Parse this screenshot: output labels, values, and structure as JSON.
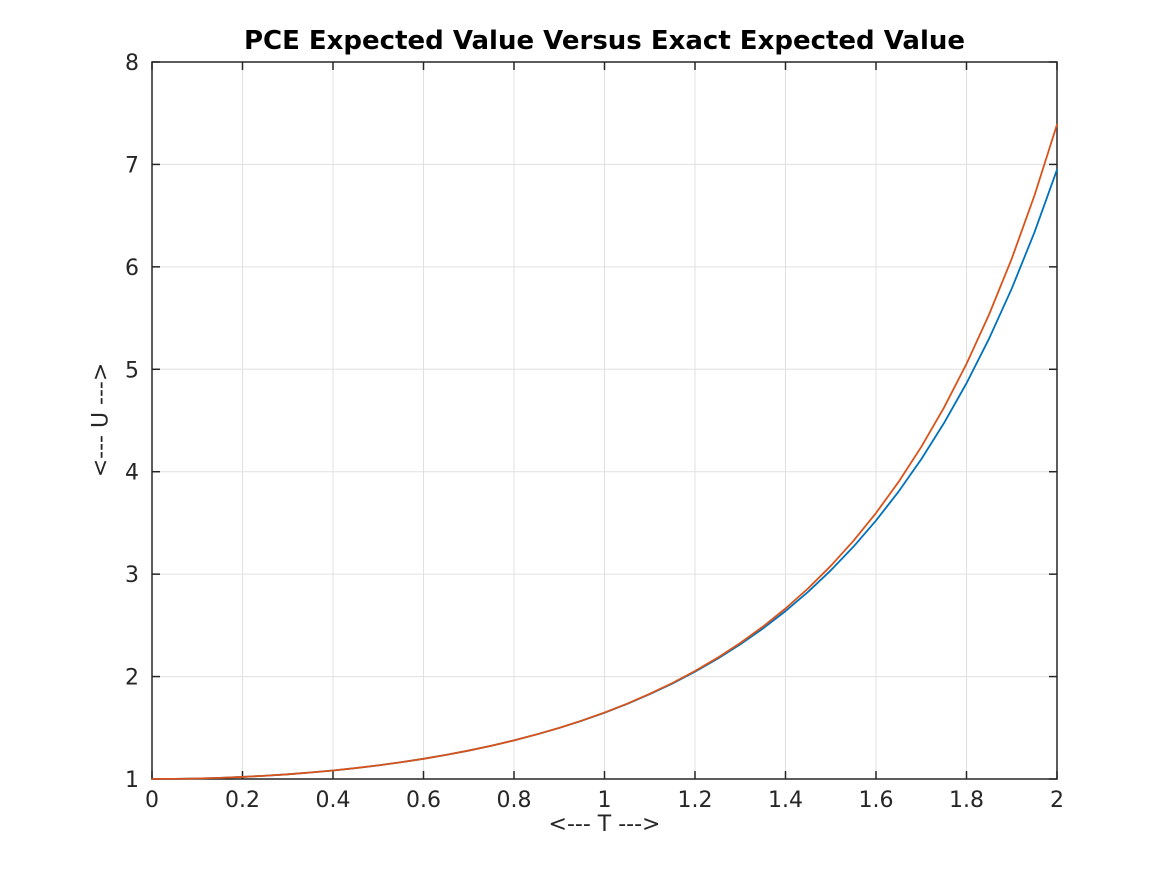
{
  "chart_data": {
    "type": "line",
    "title": "PCE Expected Value Versus Exact Expected Value",
    "xlabel": "<--- T --->",
    "ylabel": "<--- U --->",
    "xlim": [
      0,
      2
    ],
    "ylim": [
      1,
      8
    ],
    "xticks": [
      0,
      0.2,
      0.4,
      0.6,
      0.8,
      1,
      1.2,
      1.4,
      1.6,
      1.8,
      2
    ],
    "xtick_labels": [
      "0",
      "0.2",
      "0.4",
      "0.6",
      "0.8",
      "1",
      "1.2",
      "1.4",
      "1.6",
      "1.8",
      "2"
    ],
    "yticks": [
      1,
      2,
      3,
      4,
      5,
      6,
      7,
      8
    ],
    "ytick_labels": [
      "1",
      "2",
      "3",
      "4",
      "5",
      "6",
      "7",
      "8"
    ],
    "grid": true,
    "legend_position": "none",
    "background": "#ffffff",
    "axis_color": "#262626",
    "grid_color": "#e0e0e0",
    "x": [
      0,
      0.05,
      0.1,
      0.15,
      0.2,
      0.25,
      0.3,
      0.35,
      0.4,
      0.45,
      0.5,
      0.55,
      0.6,
      0.65,
      0.7,
      0.75,
      0.8,
      0.85,
      0.9,
      0.95,
      1,
      1.05,
      1.1,
      1.15,
      1.2,
      1.25,
      1.3,
      1.35,
      1.4,
      1.45,
      1.5,
      1.55,
      1.6,
      1.65,
      1.7,
      1.75,
      1.8,
      1.85,
      1.9,
      1.95,
      2
    ],
    "series": [
      {
        "name": "PCE Expected Value",
        "color": "#0072BD",
        "values": [
          1.0,
          1.0013,
          1.005,
          1.0113,
          1.0202,
          1.0317,
          1.046,
          1.0632,
          1.0833,
          1.1065,
          1.1331,
          1.1633,
          1.1971,
          1.2352,
          1.2776,
          1.3247,
          1.3768,
          1.435,
          1.4986,
          1.5691,
          1.647,
          1.7329,
          1.8276,
          1.932,
          2.047,
          2.174,
          2.314,
          2.4685,
          2.6391,
          2.8276,
          3.0362,
          3.267,
          3.5228,
          3.8066,
          4.122,
          4.4728,
          4.8637,
          5.3001,
          5.7881,
          6.3349,
          6.9491
        ]
      },
      {
        "name": "Exact Expected Value",
        "color": "#D95319",
        "values": [
          1.0,
          1.0013,
          1.005,
          1.0113,
          1.0202,
          1.0317,
          1.046,
          1.0632,
          1.0833,
          1.1066,
          1.1331,
          1.1633,
          1.1972,
          1.2352,
          1.2776,
          1.3248,
          1.3771,
          1.4351,
          1.4993,
          1.5703,
          1.6487,
          1.7354,
          1.8313,
          1.9372,
          2.0544,
          2.1842,
          2.328,
          2.4874,
          2.6645,
          2.8612,
          3.0802,
          3.3243,
          3.5966,
          3.9011,
          4.2419,
          4.624,
          5.0531,
          5.5359,
          6.08,
          6.6942,
          7.3891
        ]
      }
    ]
  }
}
